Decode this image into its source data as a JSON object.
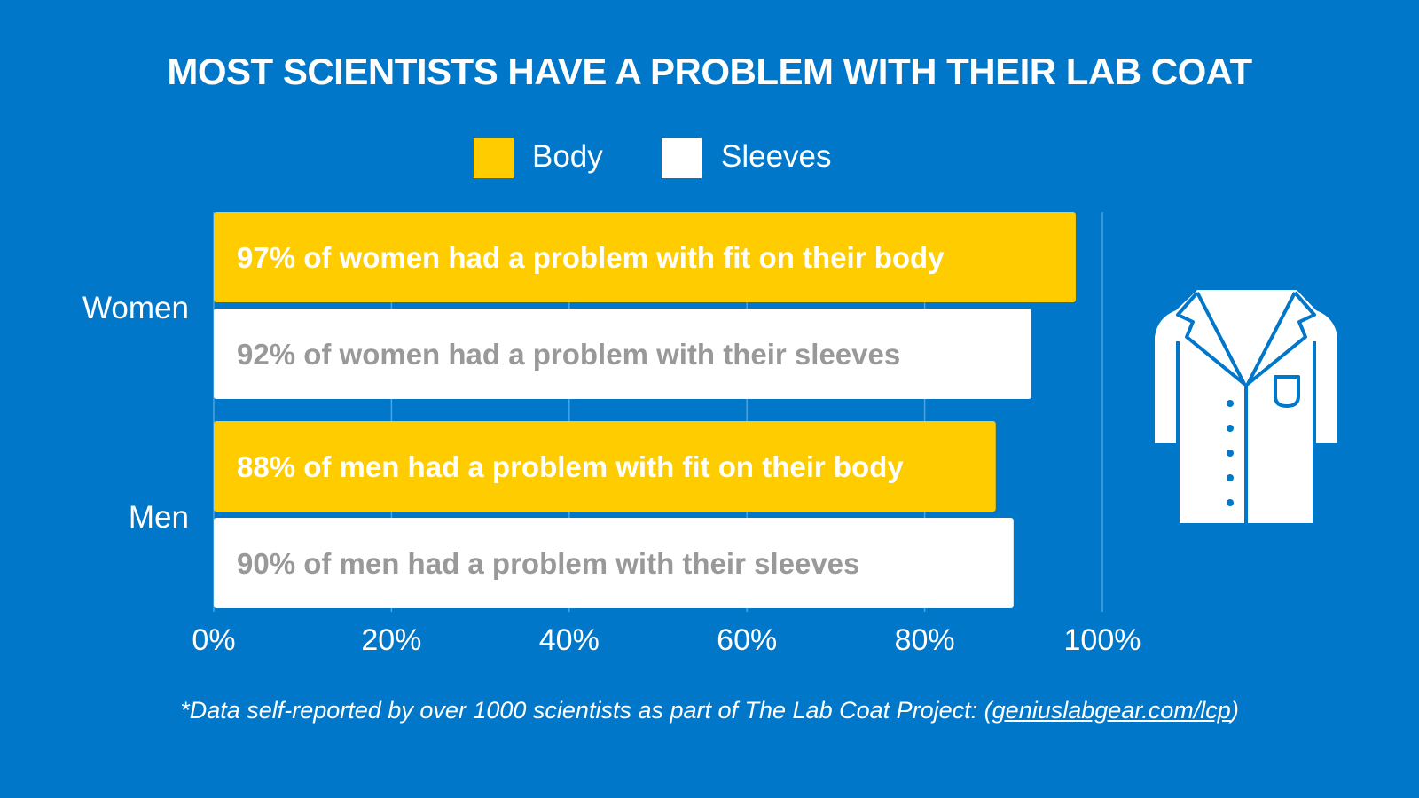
{
  "chart_data": {
    "type": "bar",
    "orientation": "horizontal",
    "title": "MOST SCIENTISTS HAVE A PROBLEM WITH THEIR LAB COAT",
    "categories": [
      "Women",
      "Men"
    ],
    "series": [
      {
        "name": "Body",
        "color": "#FFCC00",
        "values": [
          97,
          88
        ],
        "labels": [
          "97% of women had a problem with fit on their body",
          "88% of men had a problem with fit on their body"
        ],
        "label_color": "#FFFFFF"
      },
      {
        "name": "Sleeves",
        "color": "#FFFFFF",
        "values": [
          92,
          90
        ],
        "labels": [
          "92% of women had a problem with their sleeves",
          "90% of men had a problem with their sleeves"
        ],
        "label_color": "#999999"
      }
    ],
    "xlim": [
      0,
      100
    ],
    "xticks": [
      "0%",
      "20%",
      "40%",
      "60%",
      "80%",
      "100%"
    ],
    "grid": true,
    "legend": "top-center"
  },
  "footer": {
    "text": "*Data self-reported by over 1000 scientists as part of The Lab Coat Project: (",
    "link": "geniuslabgear.com/lcp",
    "close": ")"
  },
  "icon": "lab-coat-icon",
  "colors": {
    "background": "#0077C8",
    "body": "#FFCC00",
    "sleeves": "#FFFFFF"
  }
}
